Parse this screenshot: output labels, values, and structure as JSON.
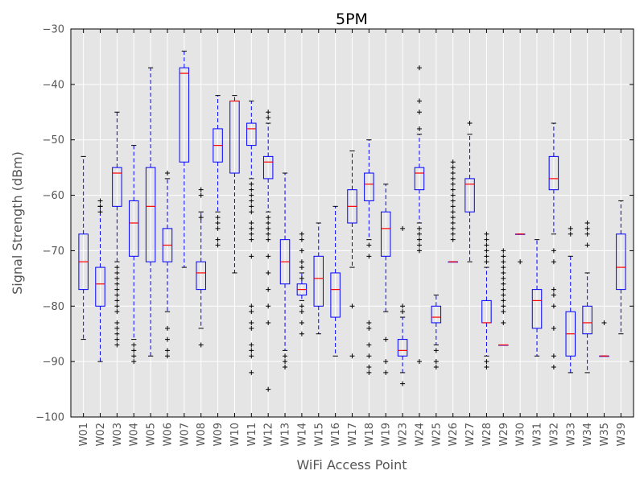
{
  "chart_data": {
    "type": "box",
    "title": "5PM",
    "xlabel": "WiFi Access Point",
    "ylabel": "Signal Strength (dBm)",
    "ylim": [
      -100,
      -30
    ],
    "yticks": [
      -100,
      -90,
      -80,
      -70,
      -60,
      -50,
      -40,
      -30
    ],
    "grid": true,
    "colors": {
      "box": "#0000ff",
      "median": "#ff0000",
      "flier": "#000000",
      "background": "#e5e5e5",
      "grid": "#ffffff"
    },
    "boxes": [
      {
        "label": "W01",
        "whislo": -86,
        "q1": -77,
        "med": -72,
        "q3": -67,
        "whishi": -53,
        "fliers": []
      },
      {
        "label": "W02",
        "whislo": -90,
        "q1": -80,
        "med": -76,
        "q3": -73,
        "whishi": -62,
        "fliers": [
          -61,
          -62,
          -63
        ]
      },
      {
        "label": "W03",
        "whislo": -72,
        "q1": -62,
        "med": -56,
        "q3": -55,
        "whishi": -45,
        "fliers": [
          -73,
          -74,
          -75,
          -76,
          -77,
          -78,
          -79,
          -80,
          -81,
          -83,
          -84,
          -85,
          -86,
          -87
        ]
      },
      {
        "label": "W04",
        "whislo": -86,
        "q1": -71,
        "med": -65,
        "q3": -61,
        "whishi": -51,
        "fliers": [
          -87,
          -88,
          -89,
          -90
        ]
      },
      {
        "label": "W05",
        "whislo": -89,
        "q1": -72,
        "med": -62,
        "q3": -55,
        "whishi": -37,
        "fliers": []
      },
      {
        "label": "W06",
        "whislo": -81,
        "q1": -72,
        "med": -69,
        "q3": -66,
        "whishi": -57,
        "fliers": [
          -56,
          -84,
          -86,
          -88,
          -89
        ]
      },
      {
        "label": "W07",
        "whislo": -73,
        "q1": -54,
        "med": -38,
        "q3": -37,
        "whishi": -34,
        "fliers": []
      },
      {
        "label": "W08",
        "whislo": -84,
        "q1": -77,
        "med": -74,
        "q3": -72,
        "whishi": -63,
        "fliers": [
          -59,
          -60,
          -64,
          -87
        ]
      },
      {
        "label": "W09",
        "whislo": -63,
        "q1": -54,
        "med": -51,
        "q3": -48,
        "whishi": -42,
        "fliers": [
          -64,
          -65,
          -66,
          -68,
          -69
        ]
      },
      {
        "label": "W10",
        "whislo": -74,
        "q1": -56,
        "med": -43,
        "q3": -43,
        "whishi": -42,
        "fliers": []
      },
      {
        "label": "W11",
        "whislo": -57,
        "q1": -51,
        "med": -48,
        "q3": -47,
        "whishi": -43,
        "fliers": [
          -58,
          -59,
          -60,
          -61,
          -62,
          -63,
          -65,
          -66,
          -67,
          -68,
          -71,
          -80,
          -81,
          -83,
          -84,
          -87,
          -88,
          -89,
          -92
        ]
      },
      {
        "label": "W12",
        "whislo": -63,
        "q1": -57,
        "med": -54,
        "q3": -53,
        "whishi": -47,
        "fliers": [
          -45,
          -46,
          -64,
          -65,
          -66,
          -67,
          -68,
          -71,
          -74,
          -77,
          -80,
          -83,
          -95
        ]
      },
      {
        "label": "W13",
        "whislo": -88,
        "q1": -76,
        "med": -72,
        "q3": -68,
        "whishi": -56,
        "fliers": [
          -89,
          -90,
          -91
        ]
      },
      {
        "label": "W14",
        "whislo": -79,
        "q1": -78,
        "med": -77,
        "q3": -76,
        "whishi": -74,
        "fliers": [
          -67,
          -68,
          -70,
          -72,
          -73,
          -75,
          -80,
          -81,
          -83,
          -85
        ]
      },
      {
        "label": "W15",
        "whislo": -85,
        "q1": -80,
        "med": -75,
        "q3": -71,
        "whishi": -65,
        "fliers": []
      },
      {
        "label": "W16",
        "whislo": -89,
        "q1": -82,
        "med": -77,
        "q3": -74,
        "whishi": -62,
        "fliers": []
      },
      {
        "label": "W17",
        "whislo": -73,
        "q1": -65,
        "med": -62,
        "q3": -59,
        "whishi": -52,
        "fliers": [
          -80,
          -89
        ]
      },
      {
        "label": "W18",
        "whislo": -68,
        "q1": -61,
        "med": -58,
        "q3": -56,
        "whishi": -50,
        "fliers": [
          -69,
          -71,
          -83,
          -84,
          -87,
          -89,
          -91,
          -92
        ]
      },
      {
        "label": "W19",
        "whislo": -81,
        "q1": -71,
        "med": -66,
        "q3": -63,
        "whishi": -58,
        "fliers": [
          -86,
          -90,
          -92
        ]
      },
      {
        "label": "W23",
        "whislo": -92,
        "q1": -89,
        "med": -88,
        "q3": -86,
        "whishi": -82,
        "fliers": [
          -66,
          -80,
          -81,
          -94
        ]
      },
      {
        "label": "W24",
        "whislo": -65,
        "q1": -59,
        "med": -56,
        "q3": -55,
        "whishi": -49,
        "fliers": [
          -37,
          -43,
          -45,
          -48,
          -66,
          -67,
          -68,
          -69,
          -70,
          -90
        ]
      },
      {
        "label": "W25",
        "whislo": -87,
        "q1": -83,
        "med": -82,
        "q3": -80,
        "whishi": -78,
        "fliers": [
          -88,
          -90,
          -91
        ]
      },
      {
        "label": "W26",
        "whislo": -72,
        "q1": -72,
        "med": -72,
        "q3": -72,
        "whishi": -72,
        "fliers": [
          -54,
          -55,
          -56,
          -57,
          -58,
          -59,
          -60,
          -61,
          -62,
          -63,
          -64,
          -65,
          -66,
          -67,
          -68
        ]
      },
      {
        "label": "W27",
        "whislo": -72,
        "q1": -63,
        "med": -58,
        "q3": -57,
        "whishi": -49,
        "fliers": [
          -47
        ]
      },
      {
        "label": "W28",
        "whislo": -89,
        "q1": -83,
        "med": -83,
        "q3": -79,
        "whishi": -73,
        "fliers": [
          -67,
          -68,
          -69,
          -70,
          -71,
          -72,
          -90,
          -91
        ]
      },
      {
        "label": "W29",
        "whislo": -87,
        "q1": -87,
        "med": -87,
        "q3": -87,
        "whishi": -87,
        "fliers": [
          -70,
          -71,
          -72,
          -73,
          -74,
          -75,
          -76,
          -77,
          -78,
          -79,
          -80,
          -81,
          -83
        ]
      },
      {
        "label": "W30",
        "whislo": -67,
        "q1": -67,
        "med": -67,
        "q3": -67,
        "whishi": -67,
        "fliers": [
          -72
        ]
      },
      {
        "label": "W31",
        "whislo": -89,
        "q1": -84,
        "med": -79,
        "q3": -77,
        "whishi": -68,
        "fliers": []
      },
      {
        "label": "W32",
        "whislo": -67,
        "q1": -59,
        "med": -57,
        "q3": -53,
        "whishi": -47,
        "fliers": [
          -70,
          -72,
          -77,
          -78,
          -80,
          -84,
          -89,
          -91
        ]
      },
      {
        "label": "W33",
        "whislo": -92,
        "q1": -89,
        "med": -85,
        "q3": -81,
        "whishi": -71,
        "fliers": [
          -66,
          -67
        ]
      },
      {
        "label": "W34",
        "whislo": -92,
        "q1": -85,
        "med": -83,
        "q3": -80,
        "whishi": -74,
        "fliers": [
          -65,
          -66,
          -67,
          -69
        ]
      },
      {
        "label": "W35",
        "whislo": -89,
        "q1": -89,
        "med": -89,
        "q3": -89,
        "whishi": -89,
        "fliers": [
          -83
        ]
      },
      {
        "label": "W39",
        "whislo": -85,
        "q1": -77,
        "med": -73,
        "q3": -67,
        "whishi": -61,
        "fliers": []
      }
    ]
  }
}
